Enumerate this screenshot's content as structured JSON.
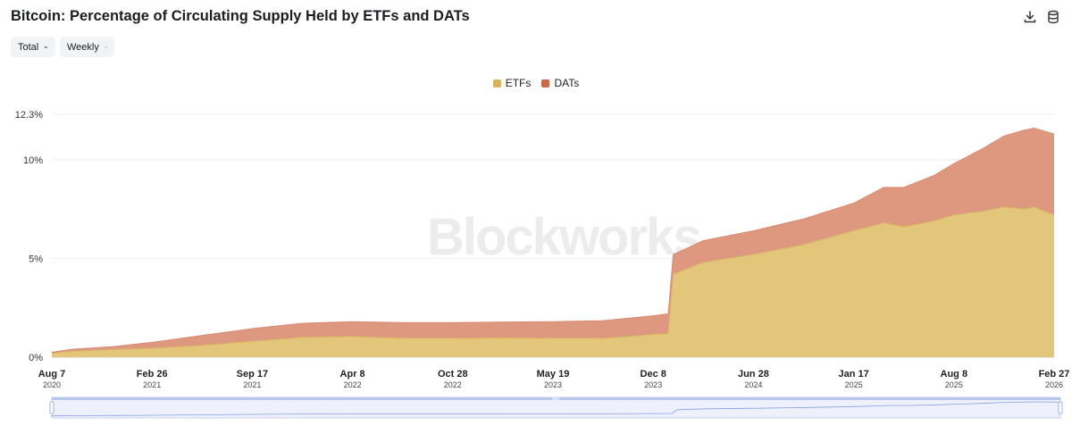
{
  "header": {
    "title": "Bitcoin: Percentage of Circulating Supply Held by ETFs and DATs",
    "download_icon": "download-icon",
    "database_icon": "database-icon"
  },
  "controls": {
    "total_label": "Total",
    "frequency_label": "Weekly"
  },
  "watermark": "Blockworks",
  "colors": {
    "etf": "#e3c67a",
    "dat": "#de9880",
    "etf_swatch": "#d9b45a",
    "dat_swatch": "#c9684a",
    "accent": "#5b7fd6"
  },
  "chart_data": {
    "type": "area",
    "stacked": true,
    "title": "Bitcoin: Percentage of Circulating Supply Held by ETFs and DATs",
    "y_ticks": [
      "0%",
      "5%",
      "10%",
      "12.3%"
    ],
    "y_tick_values": [
      0,
      5,
      10,
      12.3
    ],
    "ylim": [
      0,
      12.3
    ],
    "x_ticks": [
      {
        "date": "Aug 7",
        "year": "2020"
      },
      {
        "date": "Feb 26",
        "year": "2021"
      },
      {
        "date": "Sep 17",
        "year": "2021"
      },
      {
        "date": "Apr 8",
        "year": "2022"
      },
      {
        "date": "Oct 28",
        "year": "2022"
      },
      {
        "date": "May 19",
        "year": "2023"
      },
      {
        "date": "Dec 8",
        "year": "2023"
      },
      {
        "date": "Jun 28",
        "year": "2024"
      },
      {
        "date": "Jan 17",
        "year": "2025"
      },
      {
        "date": "Aug 8",
        "year": "2025"
      },
      {
        "date": "Feb 27",
        "year": "2026"
      }
    ],
    "x_index_range": [
      0,
      10
    ],
    "series": [
      {
        "name": "ETFs",
        "x": [
          0,
          0.2,
          0.6,
          1.0,
          1.5,
          2.0,
          2.5,
          3.0,
          3.5,
          4.0,
          4.5,
          5.0,
          5.5,
          6.0,
          6.15,
          6.2,
          6.5,
          7.0,
          7.5,
          8.0,
          8.3,
          8.5,
          8.8,
          9.0,
          9.3,
          9.5,
          9.7,
          9.8,
          10.0
        ],
        "values": [
          0.2,
          0.3,
          0.38,
          0.45,
          0.6,
          0.8,
          1.0,
          1.05,
          0.95,
          0.95,
          0.98,
          0.95,
          0.95,
          1.15,
          1.2,
          4.2,
          4.8,
          5.2,
          5.7,
          6.4,
          6.8,
          6.6,
          6.9,
          7.2,
          7.4,
          7.6,
          7.5,
          7.6,
          7.2
        ]
      },
      {
        "name": "DATs",
        "x": [
          0,
          0.2,
          0.6,
          1.0,
          1.5,
          2.0,
          2.5,
          3.0,
          3.5,
          4.0,
          4.5,
          5.0,
          5.5,
          6.0,
          6.15,
          6.2,
          6.5,
          7.0,
          7.5,
          8.0,
          8.3,
          8.5,
          8.8,
          9.0,
          9.3,
          9.5,
          9.7,
          9.8,
          10.0
        ],
        "values": [
          0.05,
          0.1,
          0.15,
          0.3,
          0.5,
          0.65,
          0.72,
          0.75,
          0.8,
          0.8,
          0.8,
          0.85,
          0.9,
          0.95,
          1.0,
          1.0,
          1.1,
          1.2,
          1.3,
          1.4,
          1.8,
          2.0,
          2.3,
          2.6,
          3.2,
          3.6,
          4.0,
          4.0,
          4.1
        ]
      }
    ],
    "legend_position": "top-center",
    "grid": true
  }
}
